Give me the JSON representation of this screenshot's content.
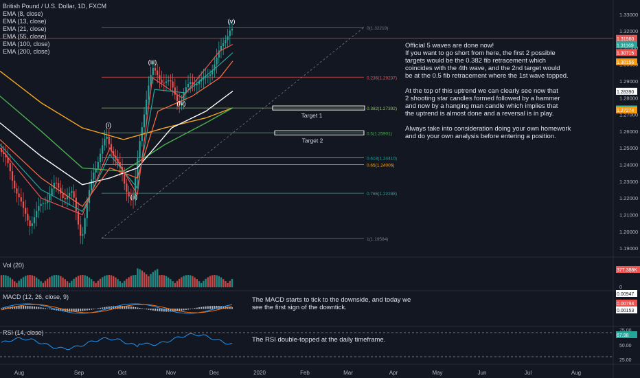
{
  "legend": {
    "symbol": "British Pound / U.S. Dollar, 1D, FXCM",
    "ema_8": "EMA (8, close)",
    "ema_13": "EMA (13, close)",
    "ema_21": "EMA (21, close)",
    "ema_55": "EMA (55, close)",
    "ema_100": "EMA (100, close)",
    "ema_200": "EMA (200, close)"
  },
  "colors": {
    "bg": "#131722",
    "up": "#26a69a",
    "down": "#ef5350",
    "ema8": "#ef5350",
    "ema13": "#26a69a",
    "ema21": "#ff7043",
    "ema55": "#ffffff",
    "ema100": "#4caf50",
    "ema200": "#f5a623",
    "grid": "#2a2e39",
    "text": "#b2b5be"
  },
  "notes": {
    "main": "Official 5 waves are done now!\nIf you want to go short from here, the first 2 possible\ntargets would be the 0.382 fib retracement which\ncoincides with the 4th wave, and the 2nd target would\nbe at the 0.5 fib retracement where the 1st wave topped.\n\nAt the top of this uptrend we can clearly see now that\n2 shooting star candles formed followed by a hammer\nand now by a hanging man candle which implies that\nthe uptrend is almost done and a reversal is in play.\n\nAlways take into consideration doing your own homework\nand do your own analysis before entering a position.",
    "macd": "The MACD starts to tick to the downside, and today we\nsee the first sign of the downtick.",
    "rsi": "The RSI double-topped at the daily timeframe."
  },
  "panels": {
    "vol_label": "Vol (20)",
    "macd_label": "MACD (12, 26, close, 9)",
    "rsi_label": "RSI (14, close)"
  },
  "chart_data": {
    "type": "candlestick",
    "title": "British Pound / U.S. Dollar, 1D, FXCM",
    "y_ticks": [
      "1.33000",
      "1.32000",
      "1.31000",
      "1.30000",
      "1.29000",
      "1.28000",
      "1.27000",
      "1.26000",
      "1.25000",
      "1.24000",
      "1.23000",
      "1.22000",
      "1.21000",
      "1.20000",
      "1.19000"
    ],
    "ylim": [
      1.1855,
      1.3365
    ],
    "x_ticks": [
      "Aug",
      "Sep",
      "Oct",
      "Nov",
      "Dec",
      "2020",
      "Feb",
      "Mar",
      "Apr",
      "May",
      "Jun",
      "Jul",
      "Aug"
    ],
    "price_badges": [
      {
        "text": "1.31560",
        "color": "#ef5350"
      },
      {
        "text": "1.31169",
        "color": "#26a69a"
      },
      {
        "text": "1.30715",
        "color": "#ef5350"
      },
      {
        "text": "1.30156",
        "color": "#ff9800"
      },
      {
        "text": "1.28390",
        "color": "#ffffff"
      },
      {
        "text": "1.27335",
        "color": "#26a69a"
      },
      {
        "text": "1.27274",
        "color": "#ff9800"
      }
    ],
    "fib_levels": [
      {
        "label": "0(1.32219)",
        "value": 1.32219,
        "color": "#787b86"
      },
      {
        "label": "0.236(1.29237)",
        "value": 1.29237,
        "color": "#ef5350"
      },
      {
        "label": "0.382(1.27392)",
        "value": 1.27392,
        "color": "#8bc34a"
      },
      {
        "label": "0.5(1.25901)",
        "value": 1.25901,
        "color": "#4caf50"
      },
      {
        "label": "0.618(1.24410)",
        "value": 1.2441,
        "color": "#26a69a"
      },
      {
        "label": "0.65(1.24006)",
        "value": 1.24006,
        "color": "#f5a623"
      },
      {
        "label": "0.786(1.22288)",
        "value": 1.22288,
        "color": "#26a69a"
      },
      {
        "label": "1(1.19584)",
        "value": 1.19584,
        "color": "#787b86"
      }
    ],
    "targets": [
      {
        "label": "Target 1",
        "value": 1.27392
      },
      {
        "label": "Target 2",
        "value": 1.25901
      }
    ],
    "wave_labels": [
      {
        "text": "(i)",
        "value": 1.2625
      },
      {
        "text": "(ii)",
        "value": 1.2195
      },
      {
        "text": "(iii)",
        "value": 1.3
      },
      {
        "text": "(iv)",
        "value": 1.2755
      },
      {
        "text": "(v)",
        "value": 1.3245
      }
    ],
    "volume": {
      "last": "377.388K",
      "zero_label": "0"
    },
    "macd": {
      "badges": [
        {
          "text": "0.00947",
          "color": "#ffffff"
        },
        {
          "text": "0.00794",
          "color": "#ef5350"
        },
        {
          "text": "0.00153",
          "color": "#ffffff"
        }
      ]
    },
    "rsi": {
      "ticks": [
        "75.00",
        "50.00",
        "25.00"
      ],
      "last": "67.98"
    }
  }
}
